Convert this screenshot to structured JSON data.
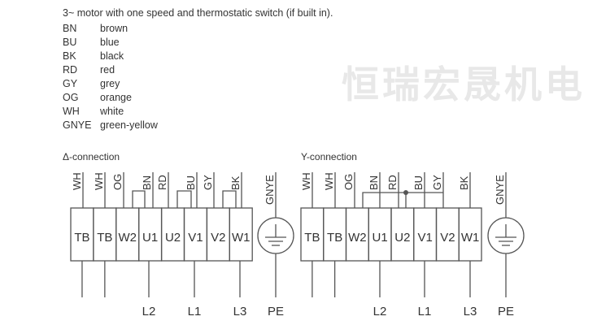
{
  "title": "3~ motor with one speed and thermostatic switch (if built in).",
  "legend": [
    {
      "code": "BN",
      "name": "brown"
    },
    {
      "code": "BU",
      "name": "blue"
    },
    {
      "code": "BK",
      "name": "black"
    },
    {
      "code": "RD",
      "name": "red"
    },
    {
      "code": "GY",
      "name": "grey"
    },
    {
      "code": "OG",
      "name": "orange"
    },
    {
      "code": "WH",
      "name": "white"
    },
    {
      "code": "GNYE",
      "name": "green-yellow"
    }
  ],
  "watermark": "恒瑞宏晟机电",
  "diagrams": [
    {
      "title": "Δ-connection",
      "terminals": [
        "TB",
        "TB",
        "W2",
        "U1",
        "U2",
        "V1",
        "V2",
        "W1"
      ],
      "wires": [
        "WH",
        "WH",
        "OG",
        "BN",
        "RD",
        "BU",
        "GY",
        "BK"
      ],
      "earth_wire": "GNYE",
      "supply": [
        "L2",
        "L1",
        "L3"
      ],
      "earth": "PE"
    },
    {
      "title": "Y-connection",
      "terminals": [
        "TB",
        "TB",
        "W2",
        "U1",
        "U2",
        "V1",
        "V2",
        "W1"
      ],
      "wires": [
        "WH",
        "WH",
        "OG",
        "BN",
        "RD",
        "BU",
        "GY",
        "BK"
      ],
      "earth_wire": "GNYE",
      "supply": [
        "L2",
        "L1",
        "L3"
      ],
      "earth": "PE"
    }
  ],
  "colors": {
    "line": "#555555",
    "text": "#333333",
    "watermark": "#e8e8e8"
  }
}
